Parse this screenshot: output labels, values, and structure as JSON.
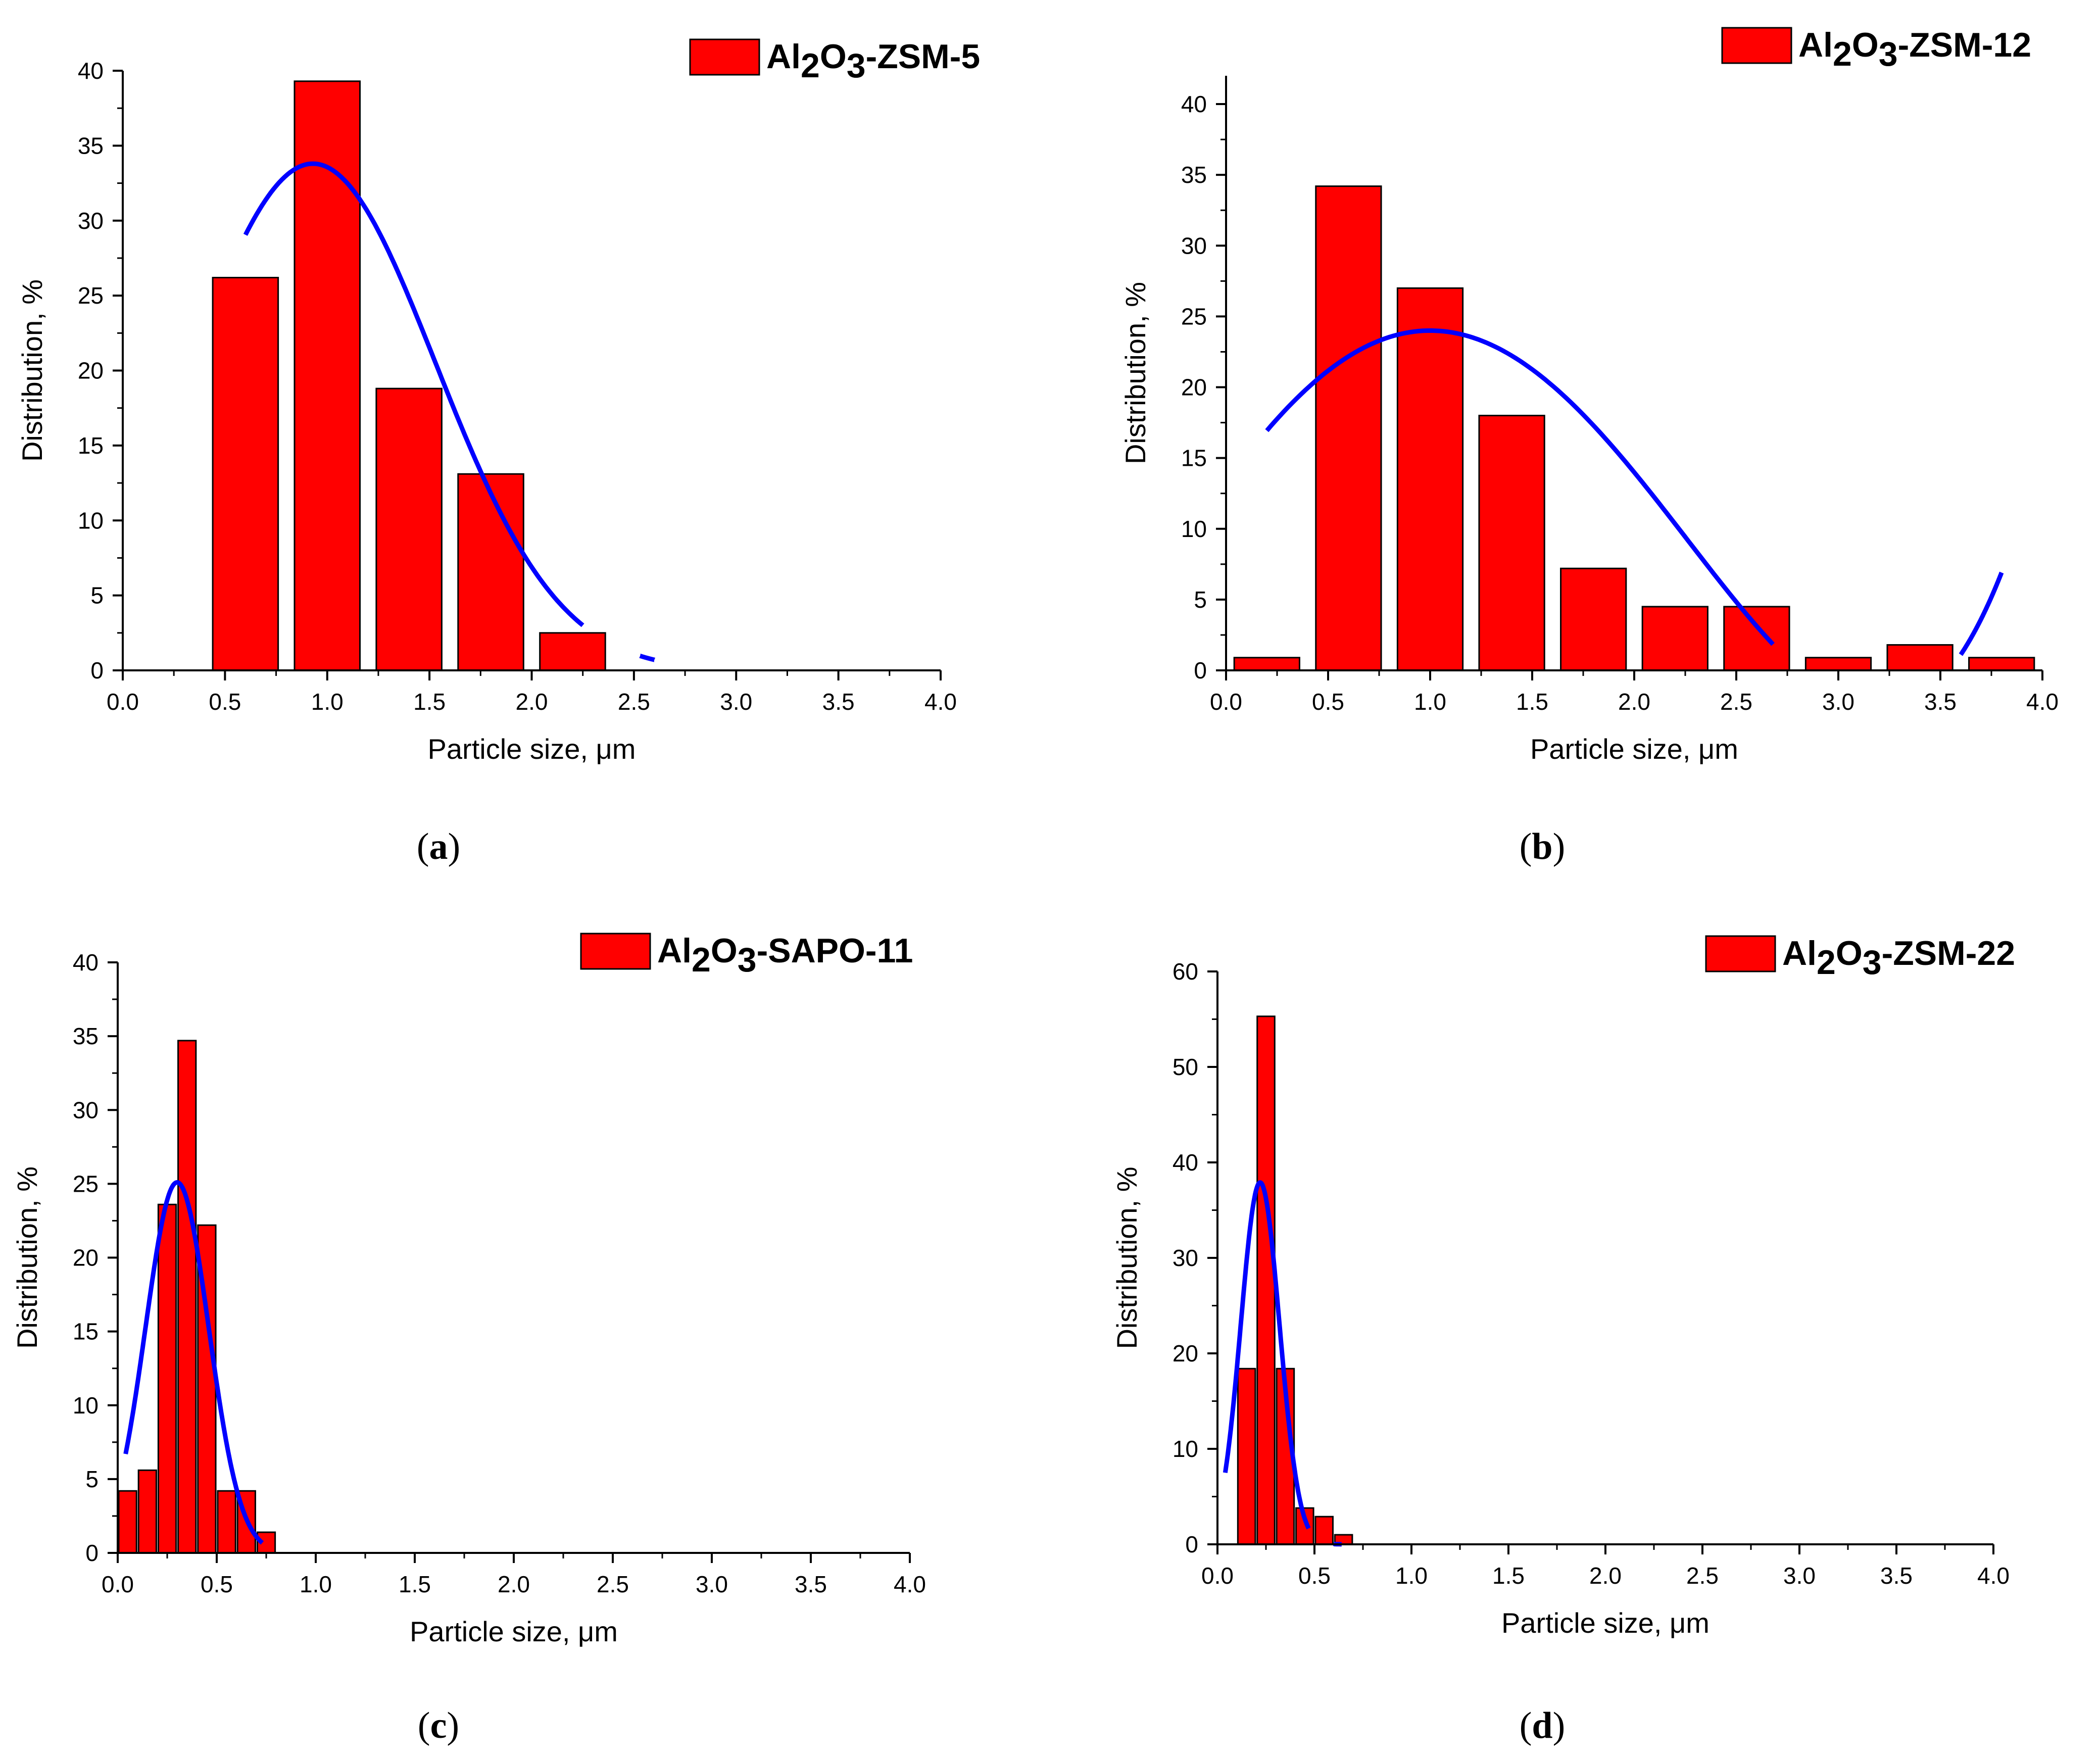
{
  "figure": {
    "colors": {
      "bar": "#ff0000",
      "fit": "#0000ff",
      "axis": "#000000"
    }
  },
  "chart_data": [
    {
      "id": "a",
      "caption": "a",
      "type": "bar",
      "legend": {
        "text": "Al",
        "sub1": "2",
        "mid": "O",
        "sub2": "3",
        "tail": "-ZSM-5",
        "position": "top-right"
      },
      "xlabel": "Particle size, μm",
      "ylabel": "Distribution, %",
      "xlim": [
        0,
        4
      ],
      "ylim": [
        0,
        40
      ],
      "xticks": [
        "0.0",
        "0.5",
        "1.0",
        "1.5",
        "2.0",
        "2.5",
        "3.0",
        "3.5",
        "4.0"
      ],
      "yticks": [
        "0",
        "5",
        "10",
        "15",
        "20",
        "25",
        "30",
        "35",
        "40"
      ],
      "bar_width": 0.32,
      "bars": [
        {
          "x": 0.6,
          "y": 26.2
        },
        {
          "x": 1.0,
          "y": 39.3
        },
        {
          "x": 1.4,
          "y": 18.8
        },
        {
          "x": 1.8,
          "y": 13.1
        },
        {
          "x": 2.2,
          "y": 2.5
        }
      ],
      "fit": {
        "type": "gaussian",
        "amp": 33.8,
        "mu": 0.93,
        "sigma": 0.6,
        "segments": [
          [
            0.6,
            2.25
          ],
          [
            2.53,
            2.6
          ]
        ]
      }
    },
    {
      "id": "b",
      "caption": "b",
      "type": "bar",
      "legend": {
        "text": "Al",
        "sub1": "2",
        "mid": "O",
        "sub2": "3",
        "tail": "-ZSM-12",
        "position": "top-right"
      },
      "xlabel": "Particle size, μm",
      "ylabel": "Distribution, %",
      "xlim": [
        0,
        4
      ],
      "ylim": [
        0,
        42
      ],
      "xticks": [
        "0.0",
        "0.5",
        "1.0",
        "1.5",
        "2.0",
        "2.5",
        "3.0",
        "3.5",
        "4.0"
      ],
      "yticks": [
        "0",
        "5",
        "10",
        "15",
        "20",
        "25",
        "30",
        "35",
        "40"
      ],
      "bar_width": 0.32,
      "bars": [
        {
          "x": 0.2,
          "y": 0.9
        },
        {
          "x": 0.6,
          "y": 34.2
        },
        {
          "x": 1.0,
          "y": 27.0
        },
        {
          "x": 1.4,
          "y": 18.0
        },
        {
          "x": 1.8,
          "y": 7.2
        },
        {
          "x": 2.2,
          "y": 4.5
        },
        {
          "x": 2.6,
          "y": 4.5
        },
        {
          "x": 3.0,
          "y": 0.9
        },
        {
          "x": 3.4,
          "y": 1.8
        },
        {
          "x": 3.8,
          "y": 0.9
        }
      ],
      "fit": {
        "type": "quartic",
        "coef": [
          24.0,
          -11.42,
          0.36,
          1.05
        ],
        "segments": [
          [
            0.2,
            2.68
          ],
          [
            3.6,
            3.8
          ]
        ]
      }
    },
    {
      "id": "c",
      "caption": "c",
      "type": "bar",
      "legend": {
        "text": "Al",
        "sub1": "2",
        "mid": "O",
        "sub2": "3",
        "tail": "-SAPO-11",
        "position": "top-right"
      },
      "xlabel": "Particle size, μm",
      "ylabel": "Distribution, %",
      "xlim": [
        0,
        4
      ],
      "ylim": [
        0,
        40
      ],
      "xticks": [
        "0.0",
        "0.5",
        "1.0",
        "1.5",
        "2.0",
        "2.5",
        "3.0",
        "3.5",
        "4.0"
      ],
      "yticks": [
        "0",
        "5",
        "10",
        "15",
        "20",
        "25",
        "30",
        "35",
        "40"
      ],
      "bar_width": 0.09,
      "bars": [
        {
          "x": 0.05,
          "y": 4.2
        },
        {
          "x": 0.15,
          "y": 5.6
        },
        {
          "x": 0.25,
          "y": 23.6
        },
        {
          "x": 0.35,
          "y": 34.7
        },
        {
          "x": 0.45,
          "y": 22.2
        },
        {
          "x": 0.55,
          "y": 4.2
        },
        {
          "x": 0.65,
          "y": 4.2
        },
        {
          "x": 0.75,
          "y": 1.4
        }
      ],
      "fit": {
        "type": "gaussian",
        "amp": 25.1,
        "mu": 0.3,
        "sigma": 0.16,
        "segments": [
          [
            0.04,
            0.73
          ]
        ]
      }
    },
    {
      "id": "d",
      "caption": "d",
      "type": "bar",
      "legend": {
        "text": "Al",
        "sub1": "2",
        "mid": "O",
        "sub2": "3",
        "tail": "-ZSM-22",
        "position": "top-right"
      },
      "xlabel": "Particle size, μm",
      "ylabel": "Distribution, %",
      "xlim": [
        0,
        4
      ],
      "ylim": [
        0,
        60
      ],
      "xticks": [
        "0.0",
        "0.5",
        "1.0",
        "1.5",
        "2.0",
        "2.5",
        "3.0",
        "3.5",
        "4.0"
      ],
      "yticks": [
        "0",
        "10",
        "20",
        "30",
        "40",
        "50",
        "60"
      ],
      "bar_width": 0.09,
      "bars": [
        {
          "x": 0.15,
          "y": 18.4
        },
        {
          "x": 0.25,
          "y": 55.3
        },
        {
          "x": 0.35,
          "y": 18.4
        },
        {
          "x": 0.45,
          "y": 3.8
        },
        {
          "x": 0.55,
          "y": 2.9
        },
        {
          "x": 0.65,
          "y": 1.0
        }
      ],
      "fit": {
        "type": "gaussian",
        "amp": 37.9,
        "mu": 0.22,
        "sigma": 0.1,
        "segments": [
          [
            0.04,
            0.47
          ],
          [
            0.6,
            0.64
          ]
        ]
      }
    }
  ]
}
